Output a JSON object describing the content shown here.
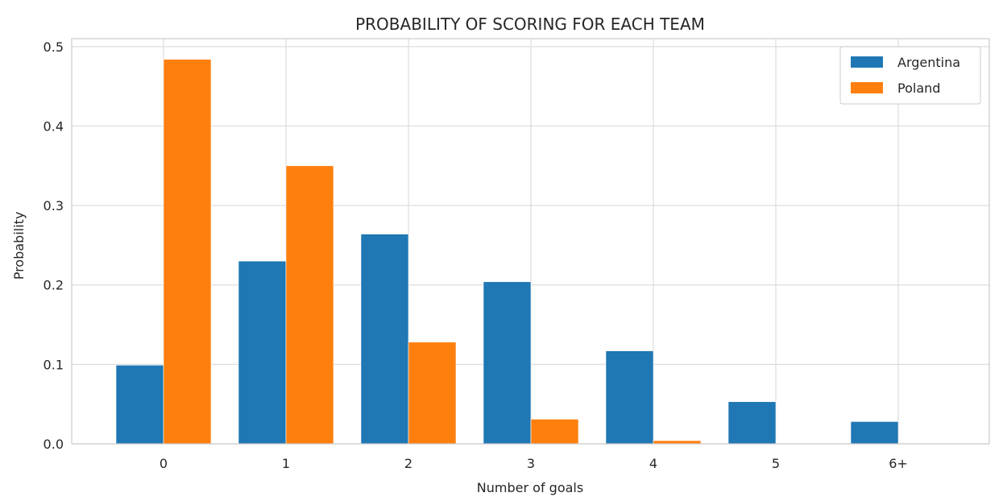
{
  "chart_data": {
    "type": "bar",
    "title": "PROBABILITY OF SCORING FOR EACH TEAM",
    "xlabel": "Number of goals",
    "ylabel": "Probability",
    "categories": [
      "0",
      "1",
      "2",
      "3",
      "4",
      "5",
      "6+"
    ],
    "series": [
      {
        "name": "Argentina",
        "color": "#1f77b4",
        "values": [
          0.099,
          0.23,
          0.264,
          0.204,
          0.117,
          0.053,
          0.028
        ]
      },
      {
        "name": "Poland",
        "color": "#ff7f0e",
        "values": [
          0.484,
          0.35,
          0.128,
          0.031,
          0.004,
          0.0,
          0.0
        ]
      }
    ],
    "ylim": [
      0,
      0.51
    ],
    "yticks": [
      0.0,
      0.1,
      0.2,
      0.3,
      0.4,
      0.5
    ],
    "ytick_labels": [
      "0.0",
      "0.1",
      "0.2",
      "0.3",
      "0.4",
      "0.5"
    ],
    "grid": true,
    "legend_position": "top-right"
  }
}
